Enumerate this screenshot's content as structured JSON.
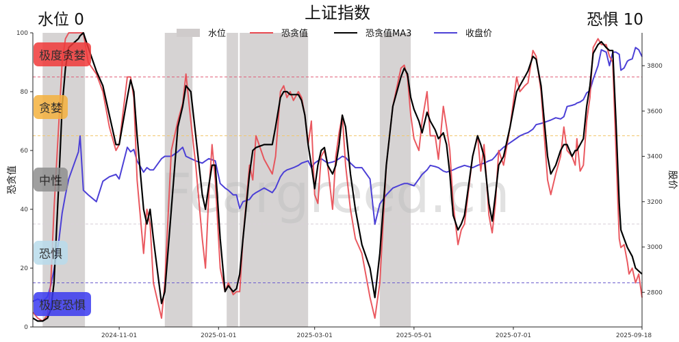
{
  "chart_data": {
    "type": "line",
    "title": "上证指数",
    "top_left_label": "水位 0",
    "top_right_label": "恐惧 10",
    "ylabel": "恐贪值",
    "ylabel_right": "股价",
    "watermark": "Feargreed.cn",
    "xlim": [
      "2024-09-09",
      "2025-09-18"
    ],
    "ylim": [
      0,
      100
    ],
    "ylim_right": [
      2647,
      3945
    ],
    "yticks": [
      0,
      20,
      40,
      60,
      80,
      100
    ],
    "yticks_right": [
      2800,
      3000,
      3200,
      3400,
      3600,
      3800
    ],
    "xticks": [
      "2024-11-01",
      "2025-01-01",
      "2025-03-01",
      "2025-05-01",
      "2025-07-01",
      "2025-09-18"
    ],
    "grid": false,
    "legend_position": "top-center",
    "threshold_lines": [
      {
        "value": 85,
        "color": "#e0607a"
      },
      {
        "value": 65,
        "color": "#f2c76b"
      },
      {
        "value": 35,
        "color": "#d8d0d8"
      },
      {
        "value": 15,
        "color": "#6a5acd"
      }
    ],
    "zones": [
      {
        "label": "极度贪婪",
        "color": "#f03a3a"
      },
      {
        "label": "贪婪",
        "color": "#f5b23e"
      },
      {
        "label": "中性",
        "color": "#8f8f8f"
      },
      {
        "label": "恐惧",
        "color": "#b9dcec"
      },
      {
        "label": "极度恐惧",
        "color": "#3a3af0"
      }
    ],
    "water_level_bands": {
      "name": "水位",
      "color": "#cfcbcb",
      "ranges": [
        [
          "2024-09-15",
          "2024-10-11"
        ],
        [
          "2024-11-29",
          "2024-12-16"
        ],
        [
          "2025-01-06",
          "2025-01-13"
        ],
        [
          "2025-01-14",
          "2025-02-25"
        ],
        [
          "2025-04-10",
          "2025-04-29"
        ]
      ]
    },
    "x": [
      "2024-09-09",
      "2024-09-12",
      "2024-09-15",
      "2024-09-18",
      "2024-09-20",
      "2024-09-22",
      "2024-09-25",
      "2024-09-27",
      "2024-09-29",
      "2024-10-01",
      "2024-10-07",
      "2024-10-08",
      "2024-10-10",
      "2024-10-13",
      "2024-10-18",
      "2024-10-22",
      "2024-10-26",
      "2024-10-30",
      "2024-11-01",
      "2024-11-06",
      "2024-11-08",
      "2024-11-10",
      "2024-11-12",
      "2024-11-16",
      "2024-11-18",
      "2024-11-20",
      "2024-11-22",
      "2024-11-27",
      "2024-11-29",
      "2024-12-03",
      "2024-12-07",
      "2024-12-10",
      "2024-12-12",
      "2024-12-15",
      "2024-12-18",
      "2024-12-22",
      "2024-12-24",
      "2024-12-26",
      "2024-12-28",
      "2024-12-30",
      "2025-01-02",
      "2025-01-05",
      "2025-01-07",
      "2025-01-10",
      "2025-01-12",
      "2025-01-14",
      "2025-01-16",
      "2025-01-20",
      "2025-01-22",
      "2025-01-24",
      "2025-01-29",
      "2025-02-03",
      "2025-02-05",
      "2025-02-08",
      "2025-02-10",
      "2025-02-12",
      "2025-02-14",
      "2025-02-16",
      "2025-02-19",
      "2025-02-21",
      "2025-02-23",
      "2025-02-25",
      "2025-02-27",
      "2025-03-01",
      "2025-03-03",
      "2025-03-05",
      "2025-03-07",
      "2025-03-09",
      "2025-03-12",
      "2025-03-14",
      "2025-03-16",
      "2025-03-18",
      "2025-03-20",
      "2025-03-23",
      "2025-03-26",
      "2025-03-30",
      "2025-04-04",
      "2025-04-07",
      "2025-04-10",
      "2025-04-14",
      "2025-04-18",
      "2025-04-23",
      "2025-04-25",
      "2025-04-27",
      "2025-04-29",
      "2025-05-01",
      "2025-05-04",
      "2025-05-06",
      "2025-05-09",
      "2025-05-11",
      "2025-05-14",
      "2025-05-16",
      "2025-05-19",
      "2025-05-21",
      "2025-05-23",
      "2025-05-25",
      "2025-05-28",
      "2025-05-30",
      "2025-06-01",
      "2025-06-06",
      "2025-06-09",
      "2025-06-11",
      "2025-06-13",
      "2025-06-16",
      "2025-06-18",
      "2025-06-20",
      "2025-06-22",
      "2025-06-25",
      "2025-06-29",
      "2025-07-03",
      "2025-07-05",
      "2025-07-08",
      "2025-07-10",
      "2025-07-13",
      "2025-07-15",
      "2025-07-18",
      "2025-07-20",
      "2025-07-22",
      "2025-07-24",
      "2025-07-27",
      "2025-07-30",
      "2025-08-01",
      "2025-08-03",
      "2025-08-06",
      "2025-08-08",
      "2025-08-09",
      "2025-08-11",
      "2025-08-13",
      "2025-08-15",
      "2025-08-17",
      "2025-08-19",
      "2025-08-22",
      "2025-08-24",
      "2025-08-27",
      "2025-08-29",
      "2025-08-31",
      "2025-09-02",
      "2025-09-04",
      "2025-09-05",
      "2025-09-07",
      "2025-09-09",
      "2025-09-10",
      "2025-09-12",
      "2025-09-14",
      "2025-09-16",
      "2025-09-18"
    ],
    "series": [
      {
        "name": "恐贪值",
        "axis": "left",
        "color": "#e8474f",
        "values": [
          5,
          3,
          2,
          4,
          15,
          40,
          70,
          90,
          98,
          100,
          100,
          100,
          100,
          90,
          86,
          80,
          68,
          60,
          62,
          85,
          85,
          78,
          50,
          25,
          40,
          35,
          15,
          3,
          15,
          60,
          70,
          76,
          86,
          70,
          55,
          30,
          20,
          45,
          62,
          50,
          20,
          12,
          15,
          11,
          12,
          12,
          30,
          55,
          50,
          65,
          57,
          52,
          58,
          80,
          82,
          78,
          80,
          77,
          80,
          78,
          72,
          62,
          70,
          45,
          42,
          58,
          60,
          55,
          40,
          58,
          66,
          72,
          55,
          40,
          30,
          25,
          10,
          3,
          15,
          55,
          75,
          88,
          89,
          85,
          72,
          64,
          60,
          70,
          80,
          65,
          65,
          57,
          75,
          68,
          60,
          42,
          28,
          33,
          35,
          58,
          65,
          53,
          62,
          38,
          32,
          42,
          60,
          55,
          68,
          85,
          80,
          82,
          83,
          94,
          92,
          80,
          65,
          50,
          45,
          52,
          58,
          68,
          60,
          58,
          55,
          64,
          53,
          55,
          70,
          78,
          95,
          98,
          96,
          96,
          92,
          90,
          60,
          30,
          27,
          28,
          22,
          18,
          20,
          15,
          18,
          10
        ]
      },
      {
        "name": "恐贪值MA3",
        "axis": "left",
        "color": "#000000",
        "values": [
          3,
          2,
          2,
          3,
          6,
          15,
          50,
          75,
          88,
          95,
          98,
          99,
          100,
          95,
          87,
          82,
          72,
          62,
          62,
          78,
          84,
          80,
          65,
          40,
          35,
          40,
          30,
          8,
          12,
          40,
          68,
          75,
          82,
          80,
          65,
          45,
          40,
          48,
          55,
          55,
          30,
          12,
          14,
          12,
          13,
          18,
          30,
          52,
          60,
          61,
          62,
          62,
          68,
          78,
          80,
          80,
          79,
          79,
          79,
          77,
          72,
          62,
          55,
          47,
          55,
          60,
          61,
          55,
          52,
          55,
          62,
          72,
          68,
          52,
          40,
          28,
          20,
          10,
          25,
          55,
          75,
          85,
          88,
          86,
          78,
          74,
          70,
          66,
          73,
          70,
          67,
          64,
          66,
          62,
          52,
          38,
          33,
          35,
          38,
          58,
          65,
          62,
          58,
          42,
          36,
          45,
          55,
          58,
          68,
          80,
          82,
          85,
          87,
          92,
          91,
          82,
          70,
          58,
          52,
          55,
          60,
          62,
          62,
          58,
          60,
          60,
          62,
          64,
          75,
          82,
          93,
          96,
          97,
          95,
          94,
          94,
          70,
          42,
          33,
          30,
          27,
          26,
          24,
          20,
          19,
          18
        ]
      },
      {
        "name": "收盘价",
        "axis": "right",
        "color": "#4b3fd6",
        "values": [
          2760,
          2770,
          2760,
          2780,
          2830,
          2900,
          3030,
          3150,
          3230,
          3300,
          3420,
          3490,
          3250,
          3230,
          3200,
          3290,
          3310,
          3320,
          3300,
          3440,
          3420,
          3430,
          3380,
          3330,
          3350,
          3340,
          3340,
          3390,
          3400,
          3400,
          3420,
          3440,
          3400,
          3390,
          3380,
          3370,
          3380,
          3390,
          3385,
          3380,
          3280,
          3260,
          3250,
          3230,
          3230,
          3170,
          3200,
          3210,
          3230,
          3240,
          3260,
          3240,
          3260,
          3310,
          3330,
          3340,
          3345,
          3350,
          3360,
          3370,
          3375,
          3380,
          3350,
          3370,
          3380,
          3390,
          3380,
          3370,
          3375,
          3380,
          3390,
          3400,
          3395,
          3370,
          3350,
          3350,
          3300,
          3100,
          3190,
          3230,
          3260,
          3275,
          3280,
          3280,
          3275,
          3270,
          3300,
          3320,
          3340,
          3360,
          3355,
          3350,
          3335,
          3330,
          3335,
          3340,
          3350,
          3355,
          3360,
          3350,
          3360,
          3365,
          3370,
          3380,
          3385,
          3400,
          3420,
          3440,
          3460,
          3480,
          3490,
          3500,
          3505,
          3520,
          3540,
          3545,
          3550,
          3555,
          3560,
          3570,
          3565,
          3575,
          3620,
          3625,
          3630,
          3635,
          3640,
          3650,
          3680,
          3690,
          3740,
          3800,
          3870,
          3860,
          3800,
          3860,
          3860,
          3850,
          3780,
          3790,
          3820,
          3825,
          3830,
          3880,
          3870,
          3840
        ]
      }
    ]
  }
}
